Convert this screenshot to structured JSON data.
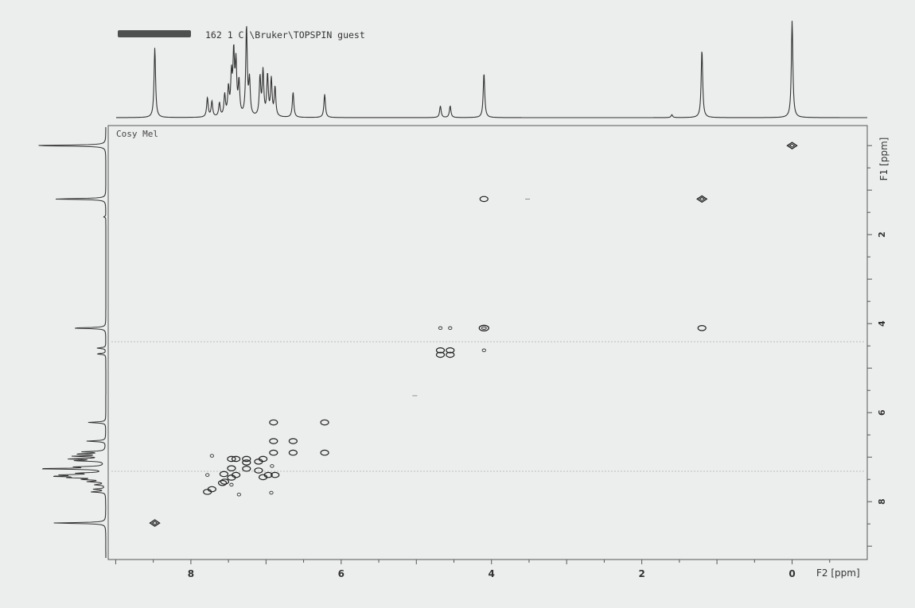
{
  "header": {
    "dataset": "162  1  C:\\Bruker\\TOPSPIN  guest"
  },
  "plot": {
    "label": "Cosy  Mel"
  },
  "chart_data": {
    "type": "scatter",
    "subtype": "2D COSY NMR contour plot",
    "xlabel": "F2 [ppm]",
    "ylabel": "F1 [ppm]",
    "x_reversed": true,
    "y_reversed": true,
    "xlim": [
      9.1,
      -1.0
    ],
    "ylim": [
      -0.45,
      9.3
    ],
    "x_ticks": [
      8,
      6,
      4,
      2,
      0
    ],
    "y_ticks": [
      2,
      4,
      6,
      8
    ],
    "peaks_1d": [
      {
        "ppm": 8.48,
        "h": 0.72
      },
      {
        "ppm": 7.78,
        "h": 0.2
      },
      {
        "ppm": 7.72,
        "h": 0.16
      },
      {
        "ppm": 7.62,
        "h": 0.14
      },
      {
        "ppm": 7.55,
        "h": 0.22
      },
      {
        "ppm": 7.5,
        "h": 0.28
      },
      {
        "ppm": 7.46,
        "h": 0.4
      },
      {
        "ppm": 7.43,
        "h": 0.62
      },
      {
        "ppm": 7.4,
        "h": 0.52
      },
      {
        "ppm": 7.36,
        "h": 0.34
      },
      {
        "ppm": 7.26,
        "h": 0.92
      },
      {
        "ppm": 7.22,
        "h": 0.36
      },
      {
        "ppm": 7.08,
        "h": 0.4
      },
      {
        "ppm": 7.04,
        "h": 0.46
      },
      {
        "ppm": 6.98,
        "h": 0.42
      },
      {
        "ppm": 6.93,
        "h": 0.38
      },
      {
        "ppm": 6.88,
        "h": 0.3
      },
      {
        "ppm": 6.64,
        "h": 0.26
      },
      {
        "ppm": 6.22,
        "h": 0.24
      },
      {
        "ppm": 4.68,
        "h": 0.12
      },
      {
        "ppm": 4.55,
        "h": 0.12
      },
      {
        "ppm": 4.1,
        "h": 0.46
      },
      {
        "ppm": 1.6,
        "h": 0.03
      },
      {
        "ppm": 1.2,
        "h": 0.7
      },
      {
        "ppm": 0.0,
        "h": 1.0
      }
    ],
    "cross_peaks": [
      {
        "x": 0.0,
        "y": 0.0,
        "shape": "diamond"
      },
      {
        "x": 1.2,
        "y": 1.2,
        "shape": "diamond"
      },
      {
        "x": 4.1,
        "y": 1.2,
        "shape": "oval"
      },
      {
        "x": 1.2,
        "y": 4.1,
        "shape": "oval"
      },
      {
        "x": 4.1,
        "y": 4.1,
        "shape": "oval-large"
      },
      {
        "x": 4.68,
        "y": 4.1,
        "shape": "dot"
      },
      {
        "x": 4.55,
        "y": 4.1,
        "shape": "dot"
      },
      {
        "x": 4.1,
        "y": 4.6,
        "shape": "dot"
      },
      {
        "x": 4.68,
        "y": 4.6,
        "shape": "oval"
      },
      {
        "x": 4.55,
        "y": 4.6,
        "shape": "oval"
      },
      {
        "x": 4.68,
        "y": 4.7,
        "shape": "oval"
      },
      {
        "x": 4.55,
        "y": 4.7,
        "shape": "oval"
      },
      {
        "x": 6.9,
        "y": 6.22,
        "shape": "oval"
      },
      {
        "x": 6.22,
        "y": 6.22,
        "shape": "oval"
      },
      {
        "x": 6.22,
        "y": 6.9,
        "shape": "oval"
      },
      {
        "x": 6.64,
        "y": 6.64,
        "shape": "oval"
      },
      {
        "x": 6.9,
        "y": 6.64,
        "shape": "oval"
      },
      {
        "x": 6.64,
        "y": 6.9,
        "shape": "oval"
      },
      {
        "x": 6.9,
        "y": 6.9,
        "shape": "oval"
      },
      {
        "x": 7.04,
        "y": 7.04,
        "shape": "oval"
      },
      {
        "x": 7.1,
        "y": 7.1,
        "shape": "oval"
      },
      {
        "x": 7.26,
        "y": 7.26,
        "shape": "oval"
      },
      {
        "x": 7.4,
        "y": 7.4,
        "shape": "oval"
      },
      {
        "x": 7.46,
        "y": 7.46,
        "shape": "oval"
      },
      {
        "x": 7.55,
        "y": 7.55,
        "shape": "oval"
      },
      {
        "x": 7.72,
        "y": 7.72,
        "shape": "oval"
      },
      {
        "x": 7.78,
        "y": 7.78,
        "shape": "oval"
      },
      {
        "x": 7.72,
        "y": 6.97,
        "shape": "dot"
      },
      {
        "x": 7.46,
        "y": 7.04,
        "shape": "oval"
      },
      {
        "x": 7.4,
        "y": 7.04,
        "shape": "oval"
      },
      {
        "x": 7.26,
        "y": 7.04,
        "shape": "oval"
      },
      {
        "x": 7.26,
        "y": 7.12,
        "shape": "oval"
      },
      {
        "x": 7.1,
        "y": 7.3,
        "shape": "oval"
      },
      {
        "x": 7.04,
        "y": 7.45,
        "shape": "oval"
      },
      {
        "x": 7.46,
        "y": 7.25,
        "shape": "oval"
      },
      {
        "x": 7.56,
        "y": 7.38,
        "shape": "oval"
      },
      {
        "x": 7.58,
        "y": 7.58,
        "shape": "oval"
      },
      {
        "x": 7.78,
        "y": 7.4,
        "shape": "dot"
      },
      {
        "x": 7.46,
        "y": 7.62,
        "shape": "dot"
      },
      {
        "x": 7.36,
        "y": 7.84,
        "shape": "dot"
      },
      {
        "x": 6.93,
        "y": 7.8,
        "shape": "dot"
      },
      {
        "x": 6.97,
        "y": 7.4,
        "shape": "oval"
      },
      {
        "x": 6.88,
        "y": 7.4,
        "shape": "oval"
      },
      {
        "x": 6.92,
        "y": 7.2,
        "shape": "dot"
      },
      {
        "x": 8.48,
        "y": 8.48,
        "shape": "diamond"
      },
      {
        "x": 5.02,
        "y": 5.62,
        "shape": "dash"
      },
      {
        "x": 3.52,
        "y": 1.2,
        "shape": "dash"
      }
    ]
  }
}
